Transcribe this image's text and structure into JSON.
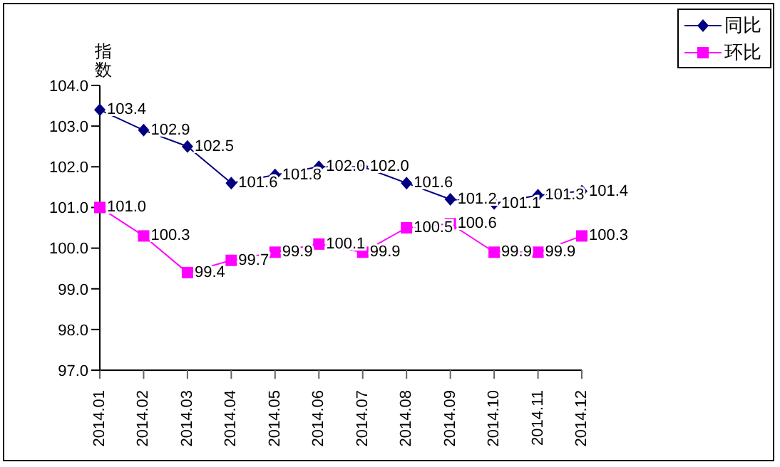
{
  "chart_data": {
    "type": "line",
    "ylabel": "指数",
    "categories": [
      "2014.01",
      "2014.02",
      "2014.03",
      "2014.04",
      "2014.05",
      "2014.06",
      "2014.07",
      "2014.08",
      "2014.09",
      "2014.10",
      "2014.11",
      "2014.12"
    ],
    "series": [
      {
        "name": "同比",
        "color": "#000080",
        "marker": "diamond",
        "values": [
          103.4,
          102.9,
          102.5,
          101.6,
          101.8,
          102.0,
          102.0,
          101.6,
          101.2,
          101.1,
          101.3,
          101.4
        ],
        "value_labels": [
          "103.4",
          "102.9",
          "102.5",
          "101.6",
          "101.8",
          "102.0",
          "102.0",
          "101.6",
          "101.2",
          "101.1",
          "101.3",
          "101.4"
        ]
      },
      {
        "name": "环比",
        "color": "#ff00ff",
        "marker": "square",
        "values": [
          101.0,
          100.3,
          99.4,
          99.7,
          99.9,
          100.1,
          99.9,
          100.5,
          100.6,
          99.9,
          99.9,
          100.3
        ],
        "value_labels": [
          "101.0",
          "100.3",
          "99.4",
          "99.7",
          "99.9",
          "100.1",
          "99.9",
          "100.5",
          "100.6",
          "99.9",
          "99.9",
          "100.3"
        ]
      }
    ],
    "ylim": [
      97,
      104
    ],
    "yticks": [
      {
        "value": 97,
        "label": "97.0"
      },
      {
        "value": 98,
        "label": "98.0"
      },
      {
        "value": 99,
        "label": "99.0"
      },
      {
        "value": 100,
        "label": "100.0"
      },
      {
        "value": 101,
        "label": "101.0"
      },
      {
        "value": 102,
        "label": "102.0"
      },
      {
        "value": 103,
        "label": "103.0"
      },
      {
        "value": 104,
        "label": "104.0"
      }
    ],
    "grid": false,
    "legend": "top right"
  }
}
